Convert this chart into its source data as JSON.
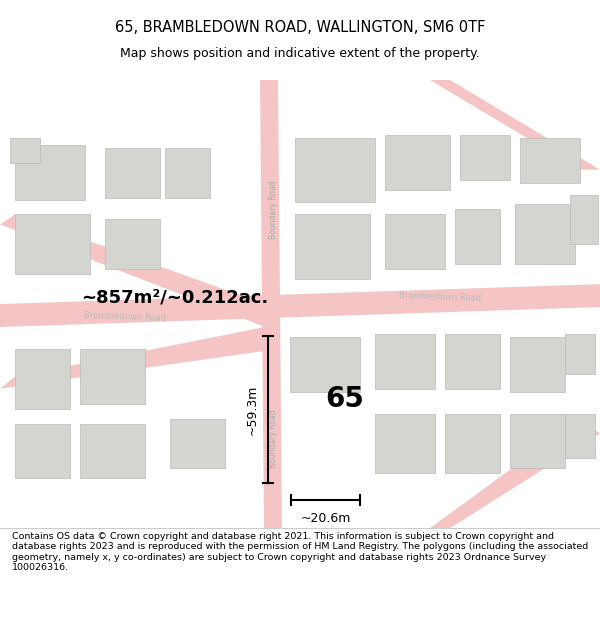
{
  "title": "65, BRAMBLEDOWN ROAD, WALLINGTON, SM6 0TF",
  "subtitle": "Map shows position and indicative extent of the property.",
  "footer": "Contains OS data © Crown copyright and database right 2021. This information is subject to Crown copyright and database rights 2023 and is reproduced with the permission of HM Land Registry. The polygons (including the associated geometry, namely x, y co-ordinates) are subject to Crown copyright and database rights 2023 Ordnance Survey 100026316.",
  "map_bg": "#f2f2ee",
  "road_color": "#f5c5c5",
  "building_color": "#d4d4d0",
  "building_edge": "#bbbbbb",
  "highlight_color": "#cc0000",
  "area_text": "~857m²/~0.212ac.",
  "label_65": "65",
  "dim_width": "~20.6m",
  "dim_height": "~59.3m",
  "title_fontsize": 10.5,
  "subtitle_fontsize": 9,
  "footer_fontsize": 6.8
}
